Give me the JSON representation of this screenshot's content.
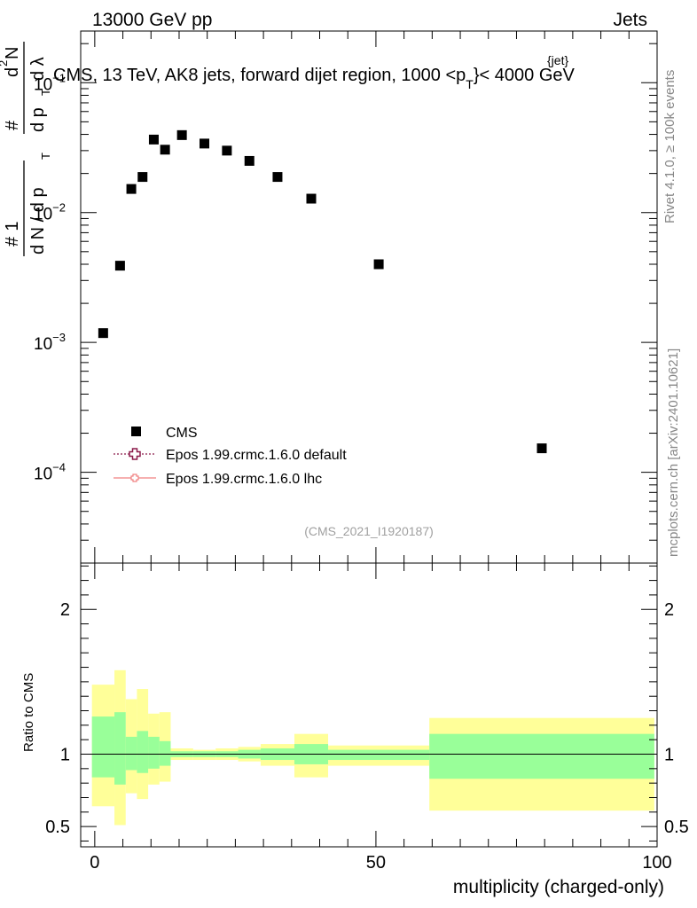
{
  "header": {
    "left": "13000 GeV pp",
    "right": "Jets"
  },
  "main_plot": {
    "title": "CMS, 13 TeV, AK8 jets, forward dijet region, 1000 <p_T^{jet}< 4000 GeV",
    "title_parts": {
      "prefix": "CMS, 13 TeV, AK8 jets, forward dijet region, 1000 <p",
      "sub": "T",
      "sup": "{jet}",
      "suffix": "}< 4000 GeV"
    },
    "ylabel": "1/(dN/dp_T) dN^2/(dp_T dλ)",
    "ylabel_parts": {
      "num1": "1",
      "den1": "d N / d p",
      "sub": "T",
      "num2": "d",
      "num2b": "N",
      "den2": "d p",
      "den2b": "d λ",
      "hash": "#",
      "sup2": "2"
    },
    "watermark": "(CMS_2021_I1920187)",
    "side_rivet": "Rivet 4.1.0, ≥ 100k events",
    "side_mcplots": "mcplots.cern.ch [arXiv:2401.10621]",
    "legend": [
      {
        "label": "CMS",
        "marker": "square",
        "color": "#000000"
      },
      {
        "label": "Epos 1.99.crmc.1.6.0 default",
        "marker": "open-cross",
        "color": "#8b1a4a",
        "line": "dotted"
      },
      {
        "label": "Epos 1.99.crmc.1.6.0 lhc",
        "marker": "cross",
        "color": "#f08080",
        "line": "solid"
      }
    ]
  },
  "chart_data": [
    {
      "type": "scatter",
      "name": "main",
      "yscale": "log",
      "xlim": [
        -2.5,
        100
      ],
      "ylim": [
        2e-05,
        0.25
      ],
      "ytick_labels": [
        {
          "value": 0.1,
          "base": "10",
          "exp": "−1"
        },
        {
          "value": 0.01,
          "base": "10",
          "exp": "−2"
        },
        {
          "value": 0.001,
          "base": "10",
          "exp": "−3"
        },
        {
          "value": 0.0001,
          "base": "10",
          "exp": "−4"
        }
      ],
      "series": [
        {
          "name": "CMS",
          "x": [
            1.5,
            4.5,
            6.5,
            8.5,
            10.5,
            12.5,
            15.5,
            19.5,
            23.5,
            27.5,
            32.5,
            38.5,
            50.5,
            79.5
          ],
          "y": [
            0.00118,
            0.0039,
            0.0152,
            0.0188,
            0.0365,
            0.0305,
            0.0395,
            0.034,
            0.03,
            0.025,
            0.0188,
            0.0128,
            0.004,
            0.000153
          ]
        }
      ]
    },
    {
      "type": "band",
      "name": "ratio",
      "xlabel": "multiplicity (charged-only)",
      "ylabel": "Ratio to CMS",
      "xlim": [
        -2.5,
        100
      ],
      "ylim": [
        0.36,
        2.32
      ],
      "xticks": [
        0,
        50,
        100
      ],
      "yticks": [
        0.5,
        1,
        2
      ],
      "reference": 1,
      "bins": [
        {
          "x0": -0.5,
          "x1": 3.5,
          "yel_lo": 0.64,
          "yel_hi": 1.48,
          "grn_lo": 0.84,
          "grn_hi": 1.26
        },
        {
          "x0": 3.5,
          "x1": 5.5,
          "yel_lo": 0.51,
          "yel_hi": 1.58,
          "grn_lo": 0.79,
          "grn_hi": 1.29
        },
        {
          "x0": 5.5,
          "x1": 7.5,
          "yel_lo": 0.73,
          "yel_hi": 1.38,
          "grn_lo": 0.89,
          "grn_hi": 1.12
        },
        {
          "x0": 7.5,
          "x1": 9.5,
          "yel_lo": 0.69,
          "yel_hi": 1.45,
          "grn_lo": 0.87,
          "grn_hi": 1.16
        },
        {
          "x0": 9.5,
          "x1": 11.5,
          "yel_lo": 0.79,
          "yel_hi": 1.28,
          "grn_lo": 0.9,
          "grn_hi": 1.12
        },
        {
          "x0": 11.5,
          "x1": 13.5,
          "yel_lo": 0.81,
          "yel_hi": 1.29,
          "grn_lo": 0.92,
          "grn_hi": 1.09
        },
        {
          "x0": 13.5,
          "x1": 17.5,
          "yel_lo": 0.96,
          "yel_hi": 1.04,
          "grn_lo": 0.98,
          "grn_hi": 1.02
        },
        {
          "x0": 17.5,
          "x1": 21.5,
          "yel_lo": 0.96,
          "yel_hi": 1.03,
          "grn_lo": 0.98,
          "grn_hi": 1.02
        },
        {
          "x0": 21.5,
          "x1": 25.5,
          "yel_lo": 0.96,
          "yel_hi": 1.04,
          "grn_lo": 0.98,
          "grn_hi": 1.02
        },
        {
          "x0": 25.5,
          "x1": 29.5,
          "yel_lo": 0.95,
          "yel_hi": 1.05,
          "grn_lo": 0.97,
          "grn_hi": 1.03
        },
        {
          "x0": 29.5,
          "x1": 35.5,
          "yel_lo": 0.92,
          "yel_hi": 1.07,
          "grn_lo": 0.96,
          "grn_hi": 1.04
        },
        {
          "x0": 35.5,
          "x1": 41.5,
          "yel_lo": 0.84,
          "yel_hi": 1.14,
          "grn_lo": 0.93,
          "grn_hi": 1.07
        },
        {
          "x0": 41.5,
          "x1": 59.5,
          "yel_lo": 0.92,
          "yel_hi": 1.06,
          "grn_lo": 0.96,
          "grn_hi": 1.03
        },
        {
          "x0": 59.5,
          "x1": 99.5,
          "yel_lo": 0.61,
          "yel_hi": 1.25,
          "grn_lo": 0.83,
          "grn_hi": 1.14
        }
      ]
    }
  ]
}
